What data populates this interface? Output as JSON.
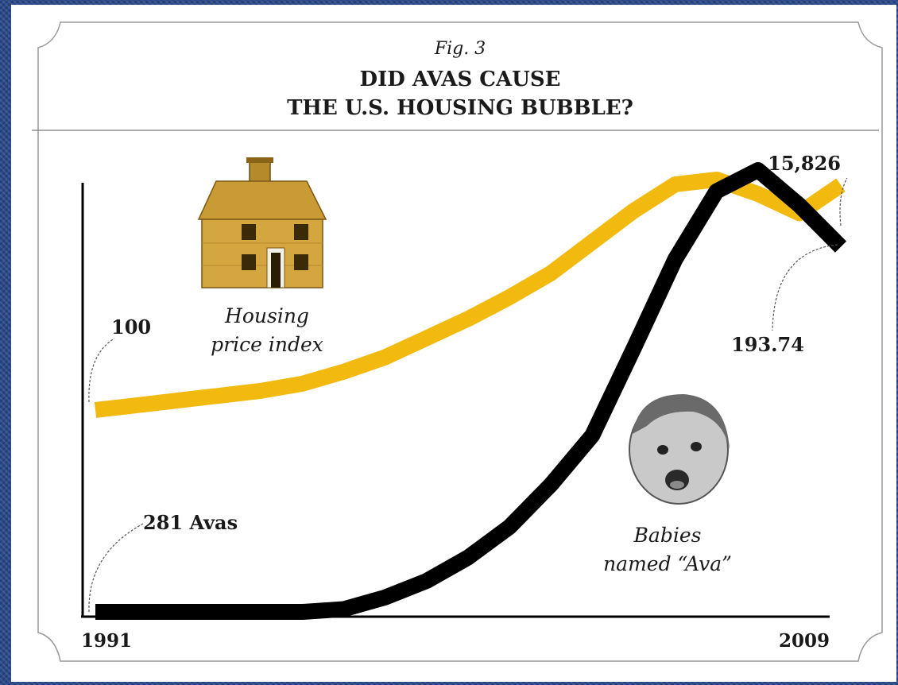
{
  "chart_data": {
    "type": "line",
    "fig_label": "Fig. 3",
    "title_lines": [
      "DID AVAS CAUSE",
      "THE U.S. HOUSING BUBBLE?"
    ],
    "x": [
      1991,
      1992,
      1993,
      1994,
      1995,
      1996,
      1997,
      1998,
      1999,
      2000,
      2001,
      2002,
      2003,
      2004,
      2005,
      2006,
      2007,
      2008,
      2009
    ],
    "x_tick_labels": [
      "1991",
      "2009"
    ],
    "series": [
      {
        "name": "Housing price index",
        "label_lines": [
          "Housing",
          "price index"
        ],
        "color": "#f2b90f",
        "values": [
          100,
          102,
          104,
          106,
          108,
          111,
          116,
          122,
          130,
          138,
          147,
          157,
          170,
          183,
          194,
          196,
          190,
          182,
          193.74
        ],
        "start_label": "100",
        "end_label": "193.74"
      },
      {
        "name": "Babies named \"Ava\"",
        "label_lines": [
          "Babies",
          "named “Ava”"
        ],
        "color": "#000000",
        "values": [
          281,
          281,
          281,
          281,
          281,
          281,
          400,
          900,
          1600,
          2600,
          3900,
          5700,
          7800,
          11500,
          15300,
          18200,
          19100,
          17600,
          15826
        ],
        "start_label": "281 Avas",
        "end_label": "15,826"
      }
    ],
    "grid": false,
    "legend": "none"
  },
  "icons": [
    "house-icon",
    "baby-face-icon"
  ]
}
